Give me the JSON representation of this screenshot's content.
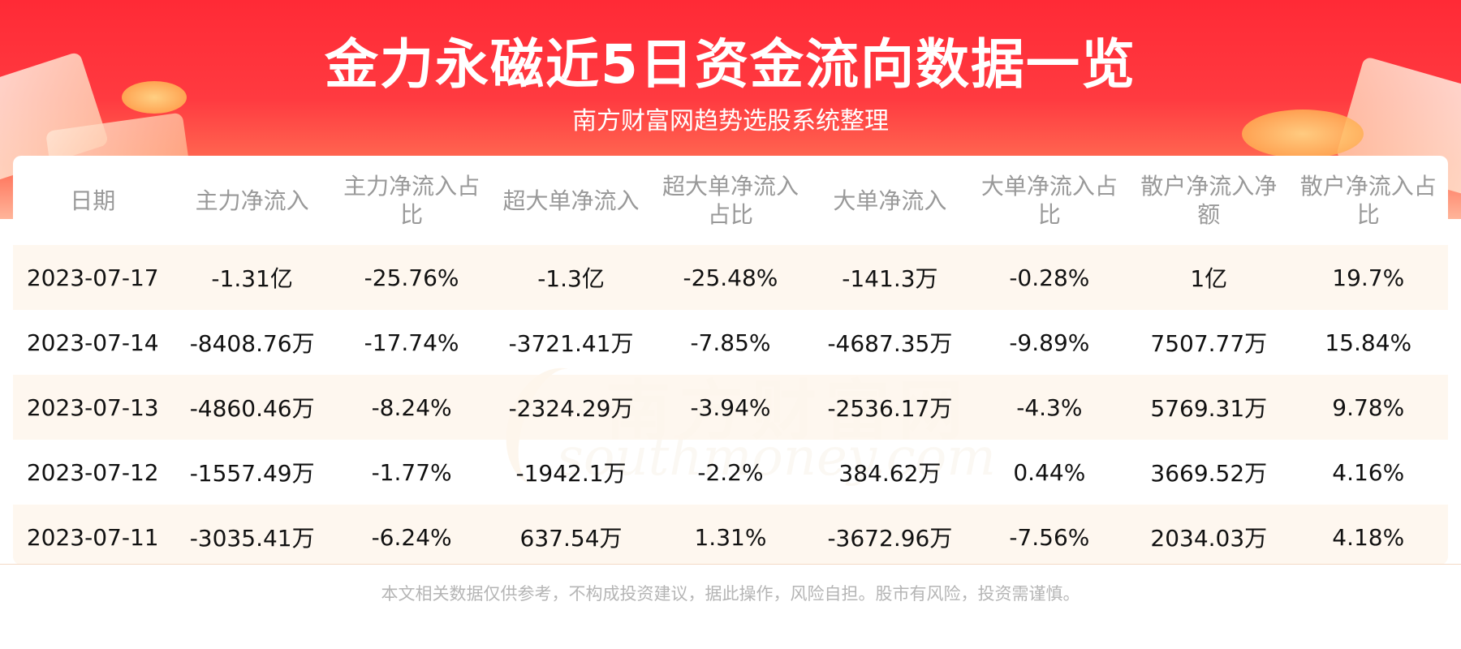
{
  "header": {
    "title": "金力永磁近5日资金流向数据一览",
    "subtitle": "南方财富网趋势选股系统整理"
  },
  "watermark": {
    "cn": "南方财富网",
    "en": "southmoney.com"
  },
  "table": {
    "columns": [
      "日期",
      "主力净流入",
      "主力净流入占比",
      "超大单净流入",
      "超大单净流入占比",
      "大单净流入",
      "大单净流入占比",
      "散户净流入净额",
      "散户净流入占比"
    ],
    "rows": [
      [
        "2023-07-17",
        "-1.31亿",
        "-25.76%",
        "-1.3亿",
        "-25.48%",
        "-141.3万",
        "-0.28%",
        "1亿",
        "19.7%"
      ],
      [
        "2023-07-14",
        "-8408.76万",
        "-17.74%",
        "-3721.41万",
        "-7.85%",
        "-4687.35万",
        "-9.89%",
        "7507.77万",
        "15.84%"
      ],
      [
        "2023-07-13",
        "-4860.46万",
        "-8.24%",
        "-2324.29万",
        "-3.94%",
        "-2536.17万",
        "-4.3%",
        "5769.31万",
        "9.78%"
      ],
      [
        "2023-07-12",
        "-1557.49万",
        "-1.77%",
        "-1942.1万",
        "-2.2%",
        "384.62万",
        "0.44%",
        "3669.52万",
        "4.16%"
      ],
      [
        "2023-07-11",
        "-3035.41万",
        "-6.24%",
        "637.54万",
        "1.31%",
        "-3672.96万",
        "-7.56%",
        "2034.03万",
        "4.18%"
      ]
    ]
  },
  "footer": {
    "disclaimer": "本文相关数据仅供参考，不构成投资建议，据此操作，风险自担。股市有风险，投资需谨慎。"
  },
  "colors": {
    "banner_red": "#ff2a36",
    "row_tint": "#fef6ee",
    "header_text": "#999999"
  }
}
